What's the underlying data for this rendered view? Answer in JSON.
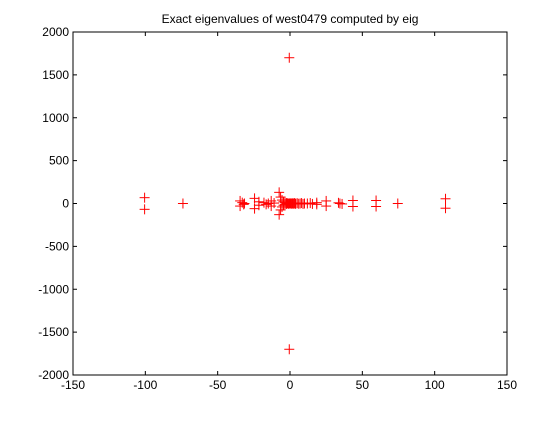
{
  "chart_data": {
    "type": "scatter",
    "title": "Exact eigenvalues of west0479 computed by eig",
    "xlabel": "",
    "ylabel": "",
    "xlim": [
      -150,
      150
    ],
    "ylim": [
      -2000,
      2000
    ],
    "xticks": [
      -150,
      -100,
      -50,
      0,
      50,
      100,
      150
    ],
    "yticks": [
      -2000,
      -1500,
      -1000,
      -500,
      0,
      500,
      1000,
      1500,
      2000
    ],
    "grid": false,
    "marker": "+",
    "marker_color": "#ff0000",
    "series": [
      {
        "points": [
          [
            -0.5,
            1700
          ],
          [
            -0.5,
            -1700
          ],
          [
            -100.5,
            68
          ],
          [
            -100.5,
            -68
          ],
          [
            -74,
            0
          ],
          [
            107.5,
            55
          ],
          [
            107.5,
            -55
          ],
          [
            74.5,
            0
          ],
          [
            59.5,
            35
          ],
          [
            59.5,
            -35
          ],
          [
            43.5,
            35
          ],
          [
            43.5,
            -35
          ],
          [
            34.5,
            0
          ],
          [
            36,
            -5
          ],
          [
            33.5,
            8
          ],
          [
            25,
            30
          ],
          [
            25,
            -30
          ],
          [
            18.5,
            10
          ],
          [
            18.5,
            -10
          ],
          [
            14,
            5
          ],
          [
            15.5,
            -5
          ],
          [
            12,
            0
          ],
          [
            -34.5,
            30
          ],
          [
            -34.5,
            -30
          ],
          [
            -33,
            10
          ],
          [
            -32,
            -10
          ],
          [
            -31.5,
            0
          ],
          [
            -24.5,
            60
          ],
          [
            -24.5,
            -60
          ],
          [
            -21.5,
            20
          ],
          [
            -21.5,
            -20
          ],
          [
            -18,
            10
          ],
          [
            -16.5,
            -10
          ],
          [
            -15,
            0
          ],
          [
            -13,
            30
          ],
          [
            -13,
            -30
          ],
          [
            -11,
            5
          ],
          [
            -7.5,
            130
          ],
          [
            -7.5,
            -130
          ],
          [
            -6.5,
            75
          ],
          [
            -6.5,
            -75
          ],
          [
            -5.5,
            40
          ],
          [
            -5.5,
            -40
          ],
          [
            -4.5,
            20
          ],
          [
            -4.5,
            -20
          ],
          [
            -3.5,
            10
          ],
          [
            -3.5,
            -10
          ],
          [
            -2.5,
            5
          ],
          [
            -2.5,
            -5
          ],
          [
            -2,
            0
          ],
          [
            -1.5,
            3
          ],
          [
            -1,
            -3
          ],
          [
            -0.5,
            0
          ],
          [
            0,
            2
          ],
          [
            0.5,
            0
          ],
          [
            1,
            -2
          ],
          [
            1.5,
            4
          ],
          [
            2,
            -4
          ],
          [
            2.5,
            0
          ],
          [
            3,
            6
          ],
          [
            3.5,
            -6
          ],
          [
            4,
            0
          ],
          [
            5,
            3
          ],
          [
            6,
            -3
          ],
          [
            7,
            0
          ],
          [
            8,
            5
          ],
          [
            9,
            -5
          ],
          [
            10,
            0
          ]
        ]
      }
    ]
  }
}
